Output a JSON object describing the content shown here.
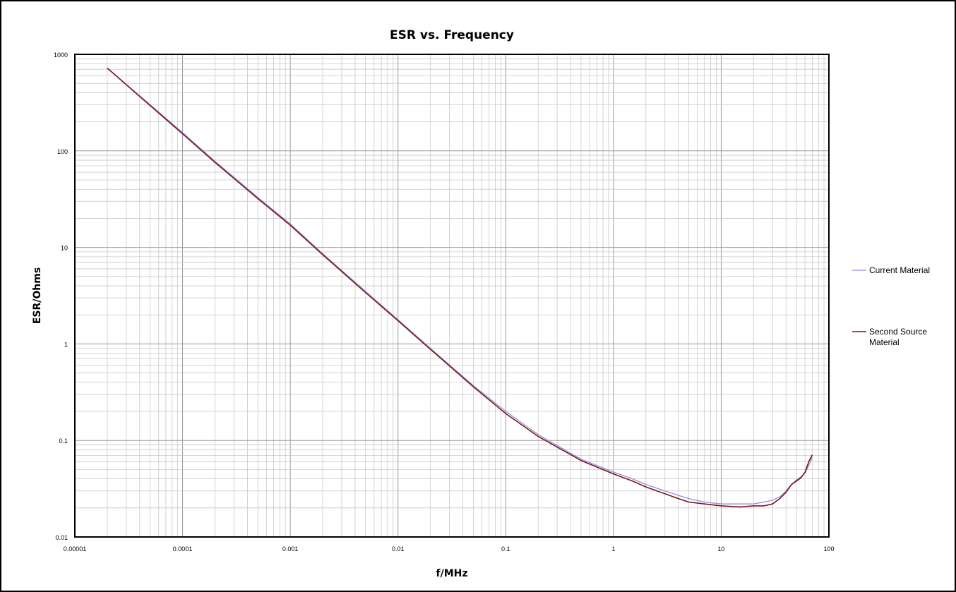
{
  "chart_data": {
    "type": "line",
    "title": "ESR vs. Frequency",
    "xlabel": "f/MHz",
    "ylabel": "ESR/Ohms",
    "xscale": "log",
    "yscale": "log",
    "xlim": [
      1e-05,
      100
    ],
    "ylim": [
      0.01,
      1000
    ],
    "xticks": [
      "0.00001",
      "0.0001",
      "0.001",
      "0.01",
      "0.1",
      "1",
      "10",
      "100"
    ],
    "yticks": [
      "0.01",
      "0.1",
      "1",
      "10",
      "100",
      "1000"
    ],
    "grid": true,
    "legend_position": "right",
    "series": [
      {
        "name": "Current Material",
        "color": "#8e8ee6",
        "x": [
          2e-05,
          5e-05,
          0.0001,
          0.0002,
          0.0005,
          0.001,
          0.002,
          0.005,
          0.01,
          0.02,
          0.05,
          0.1,
          0.2,
          0.5,
          1,
          1.5,
          2,
          3,
          4,
          5,
          7,
          10,
          15,
          20,
          25,
          30,
          35,
          40,
          45,
          50,
          55,
          60,
          65,
          70
        ],
        "values": [
          720,
          300,
          155,
          78,
          33,
          17.5,
          8.6,
          3.5,
          1.78,
          0.9,
          0.37,
          0.2,
          0.115,
          0.064,
          0.047,
          0.04,
          0.035,
          0.03,
          0.027,
          0.025,
          0.023,
          0.022,
          0.022,
          0.022,
          0.023,
          0.024,
          0.026,
          0.03,
          0.035,
          0.039,
          0.042,
          0.046,
          0.055,
          0.067
        ]
      },
      {
        "name": "Second Source Material",
        "color": "#7b1414",
        "x": [
          2e-05,
          5e-05,
          0.0001,
          0.0002,
          0.0005,
          0.001,
          0.002,
          0.005,
          0.01,
          0.02,
          0.05,
          0.1,
          0.2,
          0.5,
          1,
          1.5,
          2,
          3,
          4,
          5,
          7,
          10,
          15,
          20,
          25,
          30,
          35,
          40,
          45,
          50,
          55,
          60,
          65,
          70
        ],
        "values": [
          720,
          295,
          150,
          76,
          32,
          17,
          8.4,
          3.4,
          1.74,
          0.88,
          0.36,
          0.19,
          0.11,
          0.062,
          0.045,
          0.038,
          0.033,
          0.028,
          0.025,
          0.023,
          0.022,
          0.021,
          0.0205,
          0.021,
          0.021,
          0.022,
          0.025,
          0.029,
          0.035,
          0.038,
          0.041,
          0.047,
          0.06,
          0.071
        ]
      }
    ]
  }
}
